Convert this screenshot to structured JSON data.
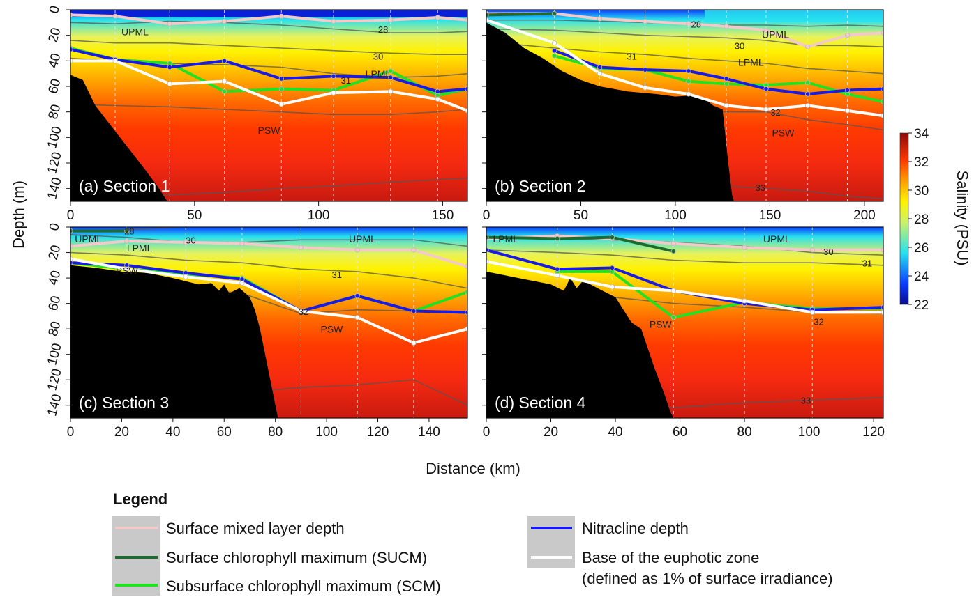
{
  "figure": {
    "y_axis_label": "Depth (m)",
    "x_axis_label": "Distance (km)",
    "colorbar_label": "Salinity (PSU)",
    "colorbar_range": [
      22,
      34
    ],
    "colorbar_ticks": [
      "22",
      "24",
      "26",
      "28",
      "30",
      "32",
      "34"
    ],
    "legend_title": "Legend",
    "colors": {
      "mixed_layer": "#f4c9c9",
      "sucm": "#1f6b2e",
      "scm": "#22e022",
      "nitracline": "#1a1ae6",
      "euphotic": "#ffffff",
      "seafloor": "#000000",
      "station_line": "#e8e8e8",
      "contour": "#555555",
      "legend_swatch_bg": "#c9c9c9"
    }
  },
  "legend": [
    {
      "key": "mixed_layer",
      "label": "Surface mixed layer depth"
    },
    {
      "key": "sucm",
      "label": "Surface chlorophyll maximum (SUCM)"
    },
    {
      "key": "scm",
      "label": "Subsurface chlorophyll maximum (SCM)"
    },
    {
      "key": "nitracline",
      "label": "Nitracline depth"
    },
    {
      "key": "euphotic",
      "label": "Base of the euphotic zone",
      "label_line2": "(defined as 1% of surface irradiance)"
    }
  ],
  "chart_data": [
    {
      "type": "heatmap",
      "title": "(a) Section 1",
      "xlim": [
        0,
        160
      ],
      "ylim": [
        0,
        150
      ],
      "x_ticks": [
        "0",
        "50",
        "100",
        "150"
      ],
      "x_tick_values": [
        0,
        50,
        100,
        150
      ],
      "y_ticks": [
        "0",
        "20",
        "40",
        "60",
        "80",
        "100",
        "120",
        "140"
      ],
      "stations": [
        0,
        18,
        40,
        62,
        85,
        106,
        129,
        148,
        160
      ],
      "series": [
        {
          "key": "mixed_layer",
          "x": [
            0,
            18,
            40,
            62,
            85,
            106,
            129,
            148,
            160
          ],
          "y": [
            4,
            5,
            11,
            9,
            5,
            9,
            8,
            6,
            8
          ]
        },
        {
          "key": "nitracline",
          "x": [
            0,
            18,
            40,
            62,
            85,
            106,
            129,
            148,
            160
          ],
          "y": [
            31,
            39,
            45,
            40,
            54,
            52,
            53,
            64,
            62
          ]
        },
        {
          "key": "scm",
          "x": [
            0,
            18,
            40,
            62,
            85,
            106,
            129,
            148,
            160
          ],
          "y": [
            30,
            39,
            42,
            64,
            62,
            63,
            48,
            67,
            62
          ]
        },
        {
          "key": "euphotic",
          "x": [
            0,
            18,
            40,
            62,
            85,
            106,
            129,
            148,
            160
          ],
          "y": [
            40,
            40,
            58,
            56,
            74,
            65,
            64,
            70,
            79
          ]
        }
      ],
      "seafloor": {
        "x": [
          0,
          5,
          10,
          20,
          30,
          35,
          39,
          40
        ],
        "y": [
          51,
          55,
          75,
          100,
          125,
          138,
          150,
          150
        ]
      },
      "isohalines": [
        {
          "value": 28,
          "y": [
            10,
            11,
            9,
            10,
            12,
            15,
            18,
            18,
            17
          ]
        },
        {
          "value": 30,
          "y": [
            24,
            26,
            26,
            28,
            30,
            32,
            34,
            35,
            35
          ]
        },
        {
          "value": 31,
          "y": [
            38,
            40,
            42,
            43,
            45,
            50,
            53,
            52,
            50
          ]
        },
        {
          "value": 32,
          "y": [
            74,
            75,
            76,
            78,
            80,
            82,
            82,
            80,
            78
          ]
        },
        {
          "value": 33,
          "y": [
            146,
            146,
            145,
            143,
            140,
            138,
            135,
            133,
            132
          ]
        }
      ],
      "labels": [
        {
          "text": "UPML",
          "x": 26,
          "y": 18
        },
        {
          "text": "28",
          "x": 126,
          "y": 16
        },
        {
          "text": "30",
          "x": 124,
          "y": 37
        },
        {
          "text": "31",
          "x": 111,
          "y": 56
        },
        {
          "text": "LPML",
          "x": 124,
          "y": 51
        },
        {
          "text": "PSW",
          "x": 80,
          "y": 95
        }
      ]
    },
    {
      "type": "heatmap",
      "title": "(b) Section 2",
      "xlim": [
        0,
        210
      ],
      "ylim": [
        0,
        150
      ],
      "x_ticks": [
        "0",
        "50",
        "100",
        "150",
        "200"
      ],
      "x_tick_values": [
        0,
        50,
        100,
        150,
        200
      ],
      "y_ticks": [],
      "stations": [
        0,
        36,
        60,
        84,
        107,
        127,
        148,
        170,
        191,
        210
      ],
      "series": [
        {
          "key": "mixed_layer",
          "x": [
            0,
            36,
            60,
            84,
            107,
            127,
            148,
            170,
            191,
            210
          ],
          "y": [
            3,
            3,
            7,
            9,
            11,
            13,
            16,
            29,
            20,
            18
          ]
        },
        {
          "key": "sucm",
          "x": [
            0,
            36
          ],
          "y": [
            4,
            3
          ]
        },
        {
          "key": "nitracline",
          "x": [
            36,
            60,
            84,
            107,
            127,
            148,
            170,
            191,
            210
          ],
          "y": [
            32,
            45,
            47,
            48,
            54,
            62,
            66,
            63,
            62
          ]
        },
        {
          "key": "scm",
          "x": [
            36,
            60,
            84,
            107,
            127,
            148,
            170,
            191,
            210
          ],
          "y": [
            36,
            46,
            47,
            56,
            58,
            59,
            57,
            66,
            72
          ]
        },
        {
          "key": "euphotic",
          "x": [
            0,
            36,
            60,
            84,
            107,
            127,
            148,
            170,
            191,
            210
          ],
          "y": [
            8,
            26,
            50,
            61,
            66,
            75,
            78,
            75,
            79,
            83
          ]
        }
      ],
      "seafloor": {
        "x": [
          0,
          10,
          20,
          30,
          40,
          50,
          60,
          75,
          90,
          100,
          110,
          115,
          120,
          125,
          128,
          130,
          131
        ],
        "y": [
          10,
          18,
          30,
          38,
          48,
          55,
          60,
          64,
          66,
          68,
          67,
          69,
          75,
          78,
          120,
          145,
          150
        ]
      },
      "isohalines": [
        {
          "value": 28,
          "y": [
            8,
            8,
            9,
            10,
            11,
            12,
            12,
            13,
            12,
            13
          ]
        },
        {
          "value": 30,
          "y": [
            15,
            16,
            18,
            20,
            21,
            22,
            24,
            28,
            28,
            29
          ]
        },
        {
          "value": 31,
          "y": [
            25,
            30,
            33,
            35,
            38,
            40,
            42,
            46,
            48,
            50
          ]
        },
        {
          "value": 32,
          "y": [
            70,
            72,
            74,
            76,
            79,
            80,
            80,
            86,
            90,
            94
          ]
        },
        {
          "value": 33,
          "y": [
            140,
            140,
            140,
            140,
            140,
            138,
            140,
            142,
            146,
            148
          ]
        }
      ],
      "labels": [
        {
          "text": "28",
          "x": 111,
          "y": 12
        },
        {
          "text": "UPML",
          "x": 153,
          "y": 20
        },
        {
          "text": "30",
          "x": 134,
          "y": 29
        },
        {
          "text": "31",
          "x": 77,
          "y": 37
        },
        {
          "text": "LPML",
          "x": 140,
          "y": 42
        },
        {
          "text": "32",
          "x": 153,
          "y": 81
        },
        {
          "text": "PSW",
          "x": 157,
          "y": 97
        },
        {
          "text": "33",
          "x": 145,
          "y": 140
        }
      ]
    },
    {
      "type": "heatmap",
      "title": "(c) Section 3",
      "xlim": [
        0,
        155
      ],
      "ylim": [
        0,
        150
      ],
      "x_ticks": [
        "0",
        "20",
        "40",
        "60",
        "80",
        "100",
        "120",
        "140"
      ],
      "x_tick_values": [
        0,
        20,
        40,
        60,
        80,
        100,
        120,
        140
      ],
      "y_ticks": [
        "0",
        "20",
        "40",
        "60",
        "80",
        "100",
        "120",
        "140"
      ],
      "stations": [
        0,
        22,
        45,
        67,
        90,
        112,
        134,
        155
      ],
      "series": [
        {
          "key": "mixed_layer",
          "x": [
            0,
            22,
            45,
            67,
            90,
            112,
            134,
            155
          ],
          "y": [
            15,
            11,
            12,
            13,
            16,
            18,
            18,
            31
          ]
        },
        {
          "key": "sucm",
          "x": [
            0,
            22
          ],
          "y": [
            3,
            3
          ]
        },
        {
          "key": "nitracline",
          "x": [
            0,
            22,
            45,
            67,
            90,
            112,
            134,
            155
          ],
          "y": [
            28,
            30,
            36,
            41,
            66,
            54,
            66,
            67
          ]
        },
        {
          "key": "scm",
          "x": [
            0,
            22,
            45,
            67,
            90,
            112,
            134,
            155
          ],
          "y": [
            28,
            33,
            37,
            40,
            66,
            54,
            66,
            51
          ]
        },
        {
          "key": "euphotic",
          "x": [
            0,
            22,
            45,
            67,
            90,
            112,
            134,
            155
          ],
          "y": [
            25,
            33,
            39,
            44,
            66,
            71,
            91,
            80
          ]
        }
      ],
      "seafloor": {
        "x": [
          0,
          10,
          20,
          30,
          40,
          50,
          55,
          58,
          60,
          62,
          66,
          70,
          72,
          74,
          76,
          78,
          80,
          81
        ],
        "y": [
          30,
          32,
          35,
          36,
          40,
          45,
          44,
          50,
          45,
          52,
          48,
          55,
          65,
          80,
          100,
          120,
          140,
          150
        ]
      },
      "isohalines": [
        {
          "value": 28,
          "y": [
            3,
            2,
            0,
            0,
            0,
            0,
            0,
            0
          ]
        },
        {
          "value": 30,
          "y": [
            6,
            8,
            12,
            12,
            10,
            10,
            10,
            15
          ]
        },
        {
          "value": 31,
          "y": [
            20,
            22,
            26,
            28,
            33,
            35,
            40,
            48
          ]
        },
        {
          "value": 32,
          "y": [
            40,
            44,
            48,
            52,
            68,
            65,
            66,
            68
          ]
        },
        {
          "value": 33,
          "y": [
            140,
            138,
            134,
            130,
            126,
            124,
            120,
            140
          ]
        }
      ],
      "labels": [
        {
          "text": "28",
          "x": 23,
          "y": 4
        },
        {
          "text": "UPML",
          "x": 7,
          "y": 10
        },
        {
          "text": "LPML",
          "x": 27,
          "y": 17
        },
        {
          "text": "30",
          "x": 47,
          "y": 11
        },
        {
          "text": "UPML",
          "x": 114,
          "y": 10
        },
        {
          "text": "PSW",
          "x": 22,
          "y": 35
        },
        {
          "text": "31",
          "x": 104,
          "y": 38
        },
        {
          "text": "32",
          "x": 91,
          "y": 67
        },
        {
          "text": "PSW",
          "x": 102,
          "y": 81
        }
      ]
    },
    {
      "type": "heatmap",
      "title": "(d) Section 4",
      "xlim": [
        0,
        123
      ],
      "ylim": [
        0,
        150
      ],
      "x_ticks": [
        "0",
        "20",
        "40",
        "60",
        "80",
        "100",
        "120"
      ],
      "x_tick_values": [
        0,
        20,
        40,
        60,
        80,
        100,
        120
      ],
      "y_ticks": [],
      "stations": [
        0,
        22,
        39,
        58,
        80,
        101,
        123
      ],
      "series": [
        {
          "key": "mixed_layer",
          "x": [
            0,
            22,
            39,
            58,
            80,
            101,
            123
          ],
          "y": [
            9,
            7,
            9,
            13,
            16,
            18,
            18
          ]
        },
        {
          "key": "sucm",
          "x": [
            0,
            22,
            39,
            58
          ],
          "y": [
            8,
            9,
            8,
            19
          ]
        },
        {
          "key": "nitracline",
          "x": [
            0,
            22,
            39,
            58,
            80,
            101,
            123
          ],
          "y": [
            18,
            33,
            32,
            50,
            60,
            65,
            63
          ]
        },
        {
          "key": "scm",
          "x": [
            22,
            39,
            58,
            80,
            101,
            123
          ],
          "y": [
            35,
            35,
            71,
            59,
            64,
            64
          ]
        },
        {
          "key": "euphotic",
          "x": [
            0,
            22,
            39,
            58,
            80,
            101,
            123
          ],
          "y": [
            27,
            38,
            47,
            50,
            58,
            67,
            67
          ]
        }
      ],
      "seafloor": {
        "x": [
          0,
          10,
          20,
          24,
          26,
          28,
          30,
          36,
          40,
          45,
          48,
          50,
          52,
          55,
          57,
          58
        ],
        "y": [
          35,
          40,
          45,
          50,
          40,
          48,
          42,
          50,
          55,
          75,
          80,
          95,
          110,
          130,
          145,
          150
        ]
      },
      "isohalines": [
        {
          "value": 30,
          "y": [
            8,
            9,
            10,
            12,
            15,
            20,
            22
          ]
        },
        {
          "value": 31,
          "y": [
            18,
            20,
            22,
            26,
            28,
            28,
            30
          ]
        },
        {
          "value": 32,
          "y": [
            50,
            52,
            55,
            60,
            63,
            67,
            68
          ]
        },
        {
          "value": 33,
          "y": [
            148,
            146,
            144,
            142,
            138,
            136,
            134
          ]
        }
      ],
      "labels": [
        {
          "text": "LPML",
          "x": 6,
          "y": 10
        },
        {
          "text": "UPML",
          "x": 90,
          "y": 10
        },
        {
          "text": "30",
          "x": 106,
          "y": 20
        },
        {
          "text": "31",
          "x": 118,
          "y": 29
        },
        {
          "text": "32",
          "x": 103,
          "y": 75
        },
        {
          "text": "PSW",
          "x": 54,
          "y": 77
        },
        {
          "text": "33",
          "x": 99,
          "y": 137
        }
      ]
    }
  ]
}
